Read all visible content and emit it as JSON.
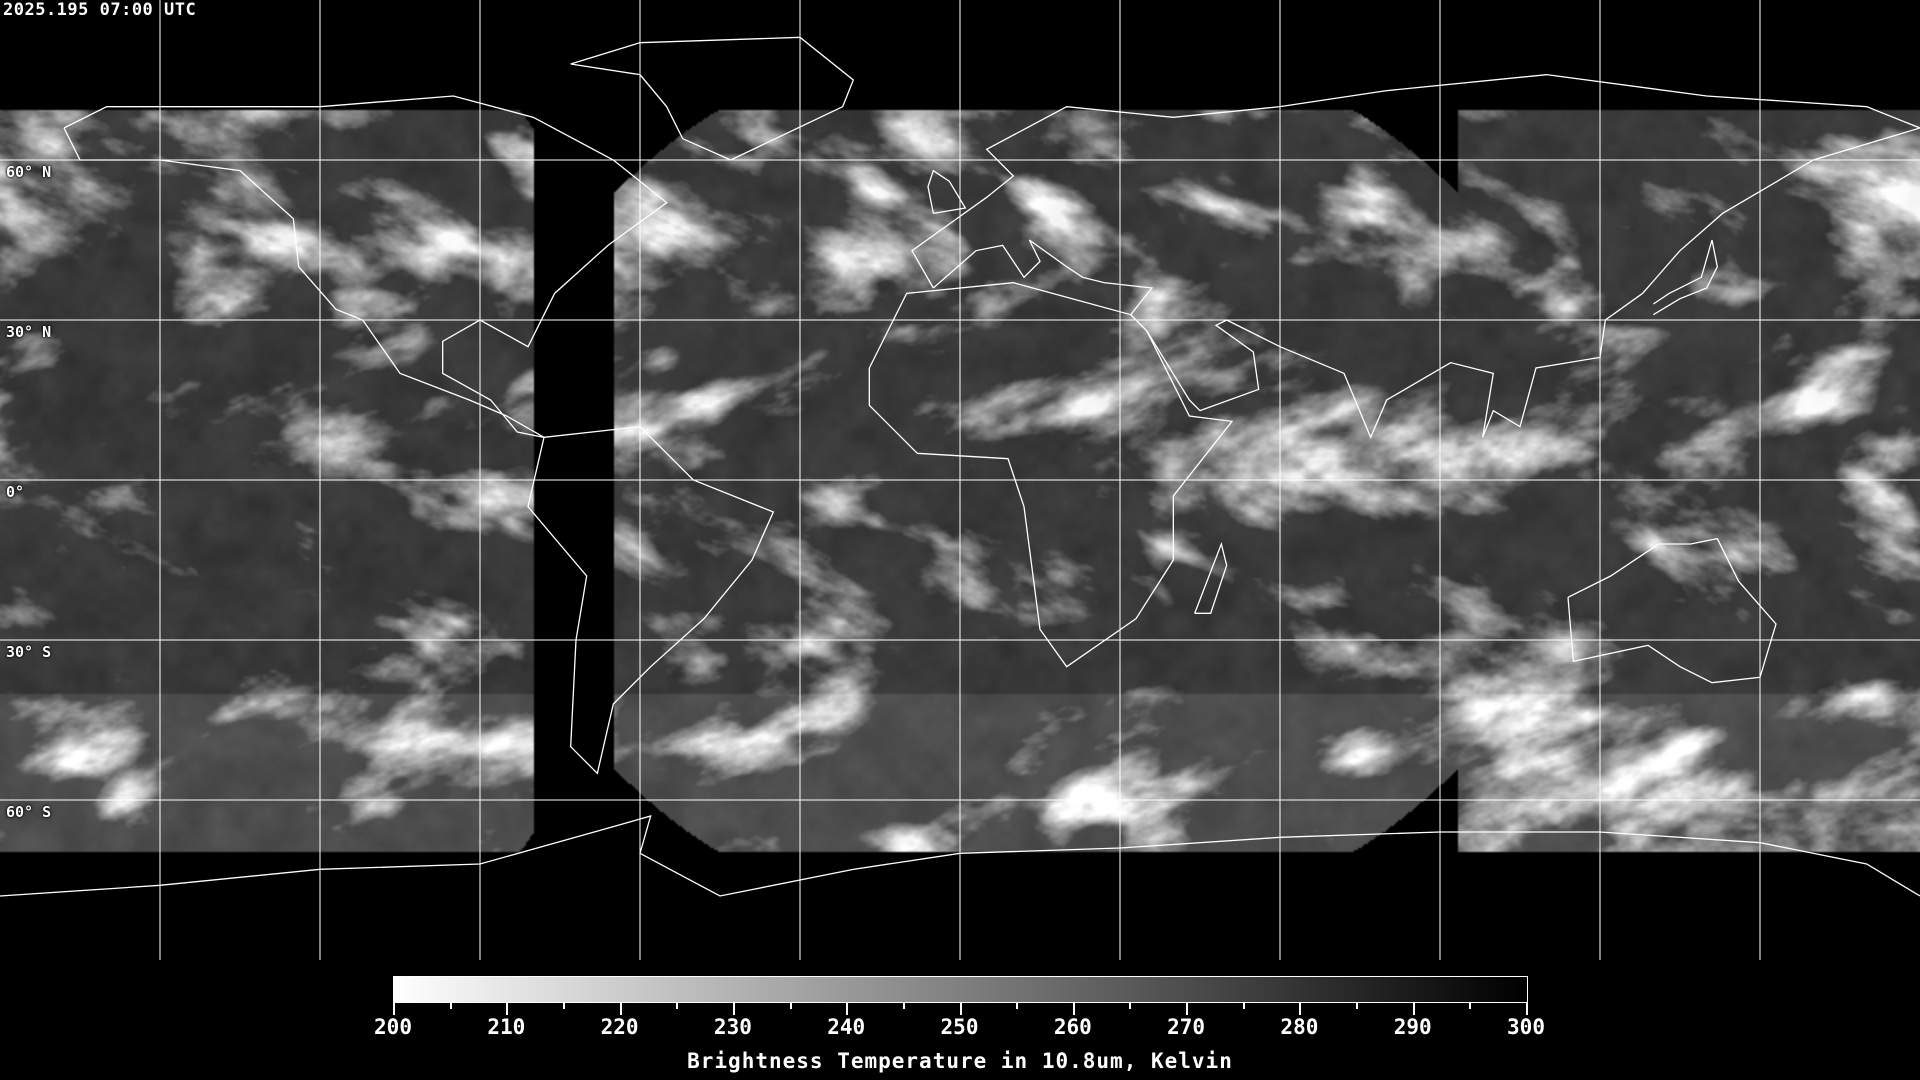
{
  "header": {
    "timestamp": "2025.195 07:00 UTC"
  },
  "map": {
    "projection": "equirectangular",
    "lat_labels": [
      "60° N",
      "30° N",
      "0°",
      "30° S",
      "60° S"
    ],
    "gridline_spacing_deg": 30,
    "gridline_color": "#ffffff",
    "coastline_color": "#ffffff"
  },
  "colorbar": {
    "title": "Brightness Temperature in 10.8um, Kelvin",
    "min": 200,
    "max": 300,
    "colormap": [
      "#ffffff",
      "#000000"
    ],
    "tick_labels": [
      "200",
      "210",
      "220",
      "230",
      "240",
      "250",
      "260",
      "270",
      "280",
      "290",
      "300"
    ]
  }
}
